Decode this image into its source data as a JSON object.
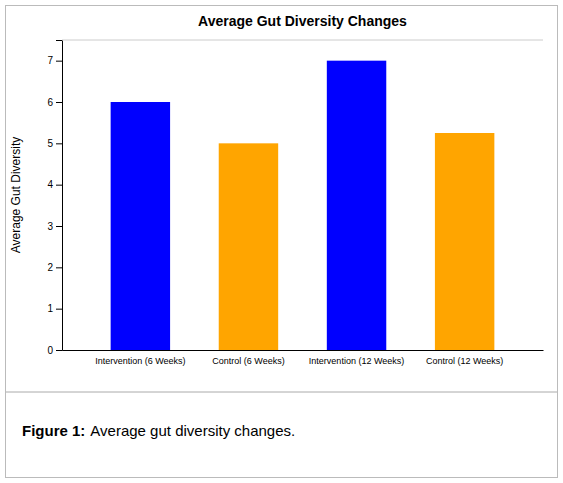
{
  "chart_data": {
    "type": "bar",
    "title": "Average Gut Diversity Changes",
    "ylabel": "Average Gut Diversity",
    "categories": [
      "Intervention (6 Weeks)",
      "Control (6 Weeks)",
      "Intervention (12 Weeks)",
      "Control (12 Weeks)"
    ],
    "values": [
      6.0,
      5.0,
      7.0,
      5.25
    ],
    "colors": [
      "#0000ff",
      "#ffa500",
      "#0000ff",
      "#ffa500"
    ],
    "ylim": [
      0,
      7.5
    ],
    "yticks": [
      0,
      1,
      2,
      3,
      4,
      5,
      6,
      7
    ],
    "grid": false,
    "annotations": [
      "Figure 1:",
      "Average gut diversity changes."
    ]
  }
}
